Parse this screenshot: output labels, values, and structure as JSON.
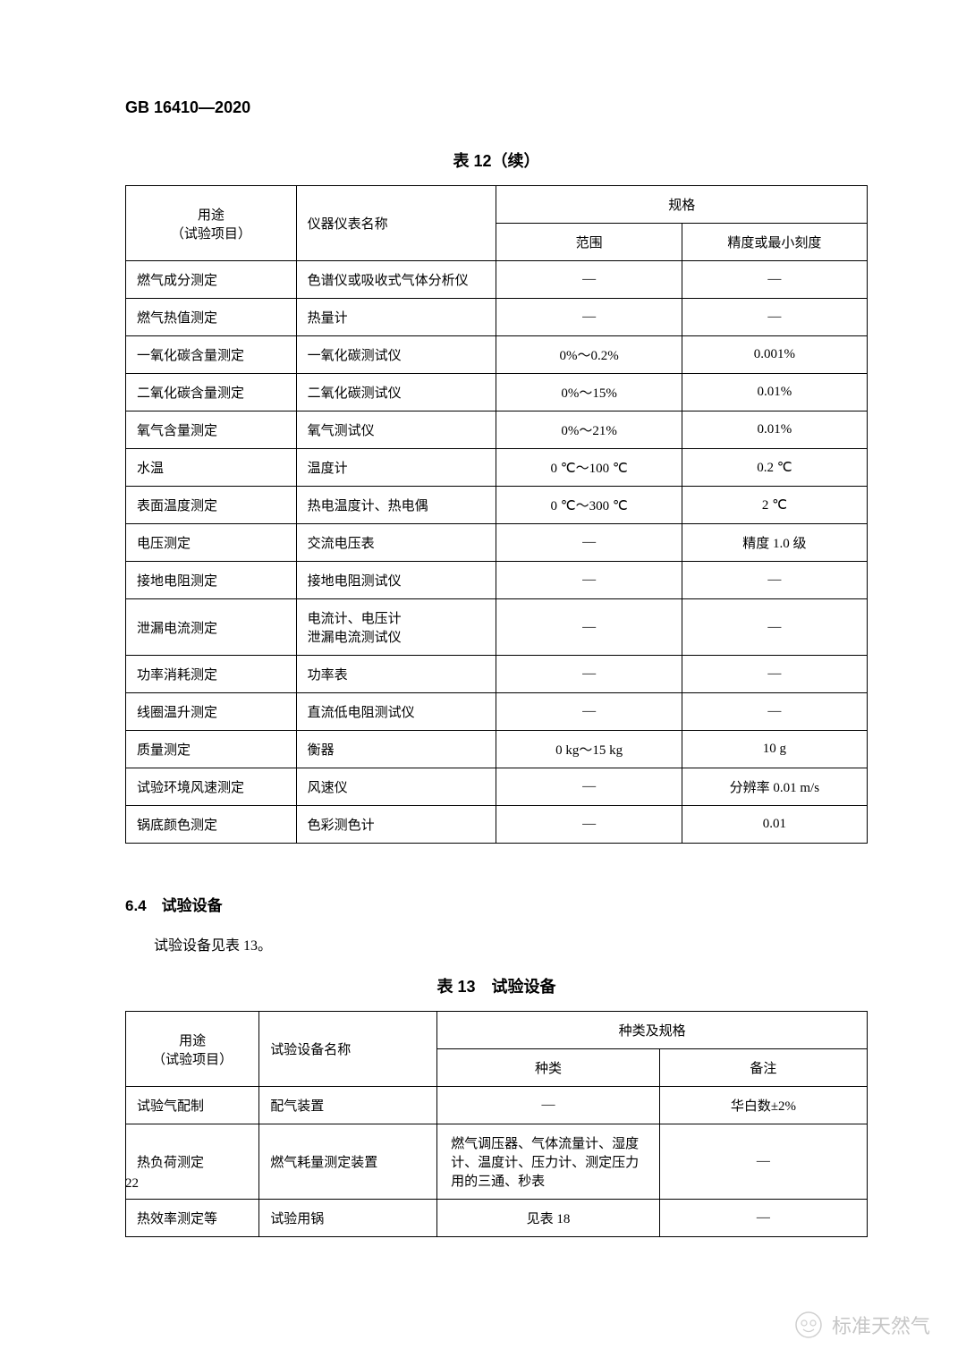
{
  "header": {
    "standard_number": "GB 16410—2020"
  },
  "table12": {
    "title": "表 12（续）",
    "headers": {
      "col1_line1": "用途",
      "col1_line2": "（试验项目）",
      "col2": "仪器仪表名称",
      "col3_group": "规格",
      "col3": "范围",
      "col4": "精度或最小刻度"
    },
    "rows": [
      {
        "c1": "燃气成分测定",
        "c2": "色谱仪或吸收式气体分析仪",
        "c3": "—",
        "c4": "—"
      },
      {
        "c1": "燃气热值测定",
        "c2": "热量计",
        "c3": "—",
        "c4": "—"
      },
      {
        "c1": "一氧化碳含量测定",
        "c2": "一氧化碳测试仪",
        "c3": "0%～0.2%",
        "c4": "0.001%"
      },
      {
        "c1": "二氧化碳含量测定",
        "c2": "二氧化碳测试仪",
        "c3": "0%～15%",
        "c4": "0.01%"
      },
      {
        "c1": "氧气含量测定",
        "c2": "氧气测试仪",
        "c3": "0%～21%",
        "c4": "0.01%"
      },
      {
        "c1": "水温",
        "c2": "温度计",
        "c3": "0 ℃～100 ℃",
        "c4": "0.2 ℃"
      },
      {
        "c1": "表面温度测定",
        "c2": "热电温度计、热电偶",
        "c3": "0 ℃～300 ℃",
        "c4": "2 ℃"
      },
      {
        "c1": "电压测定",
        "c2": "交流电压表",
        "c3": "—",
        "c4": "精度 1.0 级"
      },
      {
        "c1": "接地电阻测定",
        "c2": "接地电阻测试仪",
        "c3": "—",
        "c4": "—"
      },
      {
        "c1": "泄漏电流测定",
        "c2": "电流计、电压计\n泄漏电流测试仪",
        "c3": "—",
        "c4": "—"
      },
      {
        "c1": "功率消耗测定",
        "c2": "功率表",
        "c3": "—",
        "c4": "—"
      },
      {
        "c1": "线圈温升测定",
        "c2": "直流低电阻测试仪",
        "c3": "—",
        "c4": "—"
      },
      {
        "c1": "质量测定",
        "c2": "衡器",
        "c3": "0 kg～15 kg",
        "c4": "10 g"
      },
      {
        "c1": "试验环境风速测定",
        "c2": "风速仪",
        "c3": "—",
        "c4": "分辨率 0.01 m/s"
      },
      {
        "c1": "锅底颜色测定",
        "c2": "色彩测色计",
        "c3": "—",
        "c4": "0.01"
      }
    ]
  },
  "section": {
    "title": "6.4　试验设备",
    "text": "试验设备见表 13。"
  },
  "table13": {
    "title": "表 13　试验设备",
    "headers": {
      "col1_line1": "用途",
      "col1_line2": "（试验项目）",
      "col2": "试验设备名称",
      "col3_group": "种类及规格",
      "col3": "种类",
      "col4": "备注"
    },
    "rows": [
      {
        "c1": "试验气配制",
        "c2": "配气装置",
        "c3": "—",
        "c4": "华白数±2%",
        "c3_center": true
      },
      {
        "c1": "热负荷测定",
        "c2": "燃气耗量测定装置",
        "c3": "燃气调压器、气体流量计、湿度计、温度计、压力计、测定压力用的三通、秒表",
        "c4": "—"
      },
      {
        "c1": "热效率测定等",
        "c2": "试验用锅",
        "c3": "见表 18",
        "c4": "—",
        "c3_center": true
      }
    ]
  },
  "page_number": "22",
  "watermark": {
    "text": "标准天然气"
  }
}
